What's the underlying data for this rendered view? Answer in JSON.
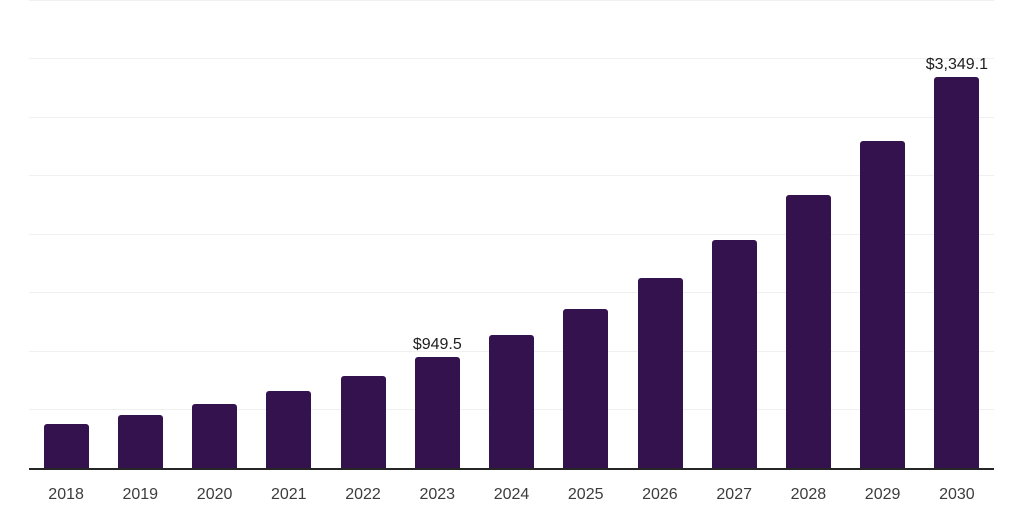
{
  "chart_data": {
    "type": "bar",
    "title": "",
    "xlabel": "",
    "ylabel": "",
    "categories": [
      "2018",
      "2019",
      "2020",
      "2021",
      "2022",
      "2023",
      "2024",
      "2025",
      "2026",
      "2027",
      "2028",
      "2029",
      "2030"
    ],
    "values": [
      375,
      455,
      550,
      655,
      790,
      949.5,
      1140,
      1360,
      1630,
      1950,
      2335,
      2795,
      3349.1
    ],
    "data_labels": [
      {
        "category": "2023",
        "index": 5,
        "text": "$949.5"
      },
      {
        "category": "2030",
        "index": 12,
        "text": "$3,349.1"
      }
    ],
    "ylim": [
      0,
      4000
    ],
    "grid_step": 500,
    "grid": "horizontal-only",
    "legend": "none",
    "y_axis_tick_labels_visible": false,
    "colors": {
      "bar": "#34124E",
      "gridline": "#F0F0F0",
      "axis_line": "#262626",
      "tick_label": "#3C3C3C",
      "data_label": "#1F1F1F",
      "background": "#FFFFFF"
    }
  }
}
